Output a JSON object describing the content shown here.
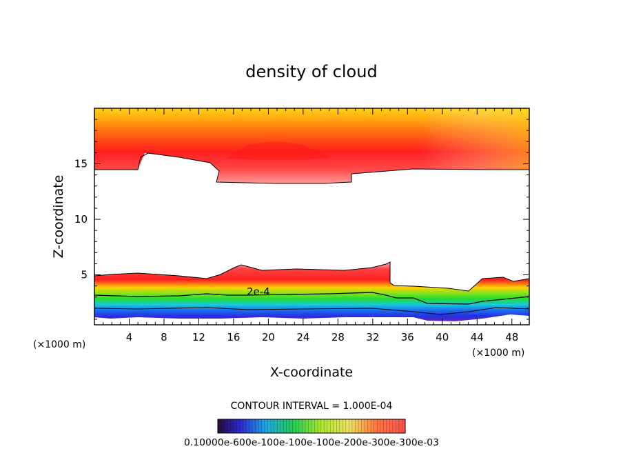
{
  "chart_data": {
    "type": "contour",
    "title": "density of cloud",
    "xlabel": "X-coordinate",
    "ylabel": "Z-coordinate",
    "x_unit_left": "(×1000 m)",
    "x_unit_right": "(×1000 m)",
    "xlim": [
      0,
      50
    ],
    "ylim": [
      0.5,
      20
    ],
    "x_ticks": [
      4,
      8,
      12,
      16,
      20,
      24,
      28,
      32,
      36,
      40,
      44,
      48
    ],
    "y_ticks": [
      5,
      10,
      15
    ],
    "contour_label": "2e-4",
    "contour_interval_text": "CONTOUR INTERVAL = 1.000E-04",
    "colorbar_labels": "0.10000e-600e-100e-100e-100e-200e-300e-300e-03",
    "colors": {
      "upper_top": "#ffcc00",
      "upper_mid": "#ff2020",
      "upper_edge": "#ff8a8a",
      "lower_top": "#ff2a2a",
      "lower_mid": "#ffe000",
      "lower_green": "#33dd22",
      "lower_cyan": "#19c8dd",
      "lower_blue": "#2233ee",
      "lower_purple": "#6a2ab8"
    }
  }
}
